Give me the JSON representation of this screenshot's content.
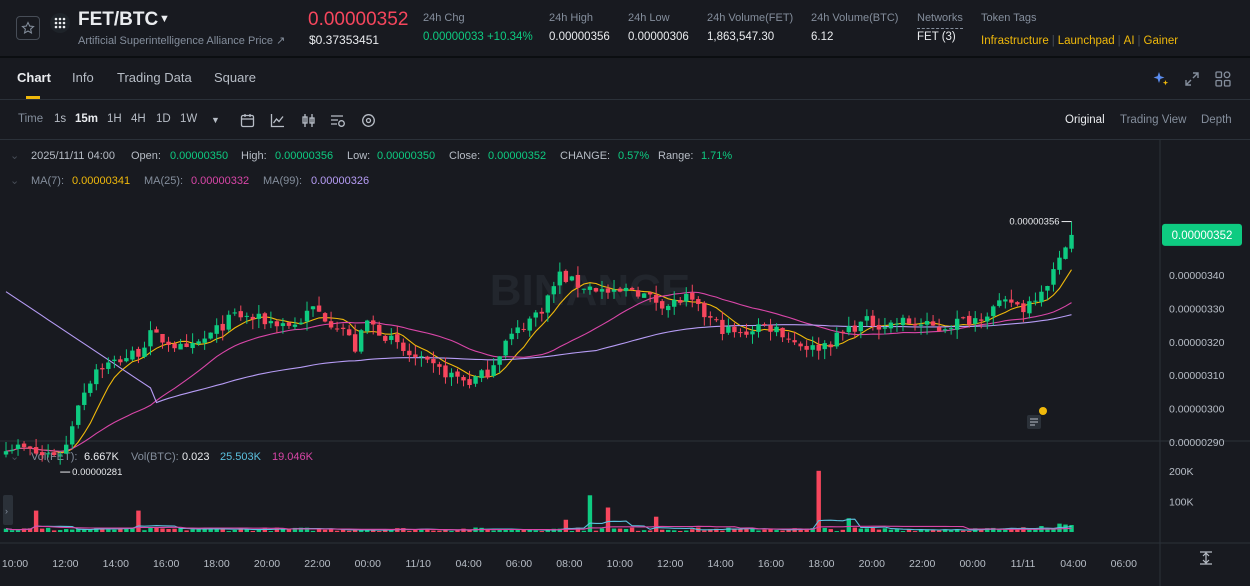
{
  "ticker": {
    "pair": "FET/BTC",
    "subtitle": "Artificial Superintelligence Alliance Price ↗",
    "last_price": "0.00000352",
    "last_price_usd": "$0.37353451",
    "stats": [
      {
        "label": "24h Chg",
        "value": "0.00000033 +10.34%",
        "color": "#0ecb81"
      },
      {
        "label": "24h High",
        "value": "0.00000356"
      },
      {
        "label": "24h Low",
        "value": "0.00000306"
      },
      {
        "label": "24h Volume(FET)",
        "value": "1,863,547.30"
      },
      {
        "label": "24h Volume(BTC)",
        "value": "6.12"
      },
      {
        "label": "Networks",
        "value": "FET (3)"
      }
    ],
    "token_tags_label": "Token Tags",
    "token_tags": [
      "Infrastructure",
      "Launchpad",
      "AI",
      "Gainer"
    ]
  },
  "tabs": [
    "Chart",
    "Info",
    "Trading Data",
    "Square"
  ],
  "active_tab": "Chart",
  "toolbar": {
    "time_label": "Time",
    "intervals": [
      "1s",
      "15m",
      "1H",
      "4H",
      "1D",
      "1W"
    ],
    "active_interval": "15m",
    "tool_icons": [
      "calendar-icon",
      "indicator-icon",
      "candle-type-icon",
      "settings-list-icon",
      "gear-icon"
    ],
    "views": [
      "Original",
      "Trading View",
      "Depth"
    ],
    "active_view": "Original"
  },
  "right_icons": [
    "ai-sparkle-icon",
    "expand-icon",
    "layout-grid-icon"
  ],
  "ohlc": {
    "datetime": "2025/11/11 04:00",
    "open_label": "Open:",
    "open": "0.00000350",
    "high_label": "High:",
    "high": "0.00000356",
    "low_label": "Low:",
    "low": "0.00000350",
    "close_label": "Close:",
    "close": "0.00000352",
    "change_label": "CHANGE:",
    "change": "0.57%",
    "range_label": "Range:",
    "range": "1.71%"
  },
  "ma_legend": [
    {
      "label": "MA(7):",
      "value": "0.00000341",
      "color": "#f0b90b"
    },
    {
      "label": "MA(25):",
      "value": "0.00000332",
      "color": "#d946a8"
    },
    {
      "label": "MA(99):",
      "value": "0.00000326",
      "color": "#b69cf5"
    }
  ],
  "vol_legend": {
    "fet_label": "Vol(FET):",
    "fet_value": "6.667K",
    "btc_label": "Vol(BTC):",
    "btc_value": "0.023",
    "ma1": "25.503K",
    "ma2": "19.046K"
  },
  "watermark": "BINANCE",
  "colors": {
    "up": "#0ecb81",
    "down": "#f6465d",
    "ma7": "#f0b90b",
    "ma25": "#d946a8",
    "ma99": "#b69cf5",
    "vol_ma1": "#5bc0de",
    "vol_ma2": "#d946a8"
  },
  "chart_data": {
    "type": "candlestick",
    "interval": "15m",
    "y_axis_labels": [
      "0.00000340",
      "0.00000330",
      "0.00000320",
      "0.00000310",
      "0.00000300",
      "0.00000290"
    ],
    "y_axis_values": [
      3.4,
      3.3,
      3.2,
      3.1,
      3.0,
      2.9
    ],
    "ylim": [
      2.815,
      3.6
    ],
    "y_unit": "1e-6 BTC",
    "current_price_label": "0.00000352",
    "current_price": 3.52,
    "high_marker_label": "0.00000356",
    "high_marker": 3.56,
    "low_marker_label": "0.00000281",
    "low_marker": 2.81,
    "x_axis_labels": [
      "10:00",
      "12:00",
      "14:00",
      "16:00",
      "18:00",
      "20:00",
      "22:00",
      "00:00",
      "11/10",
      "04:00",
      "06:00",
      "08:00",
      "10:00",
      "12:00",
      "14:00",
      "16:00",
      "18:00",
      "20:00",
      "22:00",
      "00:00",
      "11/11",
      "04:00",
      "06:00"
    ],
    "volume_axis_labels": [
      "200K",
      "100K"
    ],
    "volume_axis_values": [
      200,
      100
    ],
    "close_trajectory": [
      [
        0,
        2.89
      ],
      [
        3,
        2.88
      ],
      [
        6,
        2.86
      ],
      [
        9,
        2.87
      ],
      [
        10,
        2.89
      ],
      [
        12,
        3.02
      ],
      [
        15,
        3.12
      ],
      [
        18,
        3.14
      ],
      [
        22,
        3.17
      ],
      [
        24,
        3.22
      ],
      [
        27,
        3.2
      ],
      [
        30,
        3.17
      ],
      [
        34,
        3.22
      ],
      [
        38,
        3.28
      ],
      [
        41,
        3.27
      ],
      [
        44,
        3.26
      ],
      [
        48,
        3.25
      ],
      [
        51,
        3.3
      ],
      [
        54,
        3.26
      ],
      [
        56,
        3.24
      ],
      [
        58,
        3.18
      ],
      [
        60,
        3.26
      ],
      [
        63,
        3.22
      ],
      [
        66,
        3.17
      ],
      [
        70,
        3.13
      ],
      [
        74,
        3.1
      ],
      [
        77,
        3.08
      ],
      [
        80,
        3.11
      ],
      [
        83,
        3.2
      ],
      [
        86,
        3.25
      ],
      [
        89,
        3.3
      ],
      [
        92,
        3.4
      ],
      [
        95,
        3.37
      ],
      [
        98,
        3.36
      ],
      [
        101,
        3.34
      ],
      [
        104,
        3.36
      ],
      [
        107,
        3.33
      ],
      [
        110,
        3.31
      ],
      [
        113,
        3.33
      ],
      [
        116,
        3.28
      ],
      [
        119,
        3.24
      ],
      [
        122,
        3.22
      ],
      [
        125,
        3.25
      ],
      [
        128,
        3.24
      ],
      [
        131,
        3.2
      ],
      [
        134,
        3.18
      ],
      [
        137,
        3.2
      ],
      [
        140,
        3.24
      ],
      [
        143,
        3.26
      ],
      [
        146,
        3.25
      ],
      [
        149,
        3.26
      ],
      [
        152,
        3.25
      ],
      [
        155,
        3.24
      ],
      [
        158,
        3.26
      ],
      [
        161,
        3.27
      ],
      [
        164,
        3.3
      ],
      [
        167,
        3.32
      ],
      [
        169,
        3.3
      ],
      [
        171,
        3.34
      ],
      [
        173,
        3.38
      ],
      [
        175,
        3.44
      ],
      [
        176,
        3.5
      ],
      [
        177,
        3.52
      ]
    ],
    "volume_spikes_k": [
      [
        5,
        70
      ],
      [
        22,
        70
      ],
      [
        93,
        40
      ],
      [
        97,
        120
      ],
      [
        100,
        80
      ],
      [
        108,
        50
      ],
      [
        135,
        200
      ],
      [
        140,
        45
      ]
    ],
    "series": [
      {
        "name": "MA(7)",
        "last": 3.41
      },
      {
        "name": "MA(25)",
        "last": 3.32
      },
      {
        "name": "MA(99)",
        "last": 3.26
      }
    ]
  }
}
